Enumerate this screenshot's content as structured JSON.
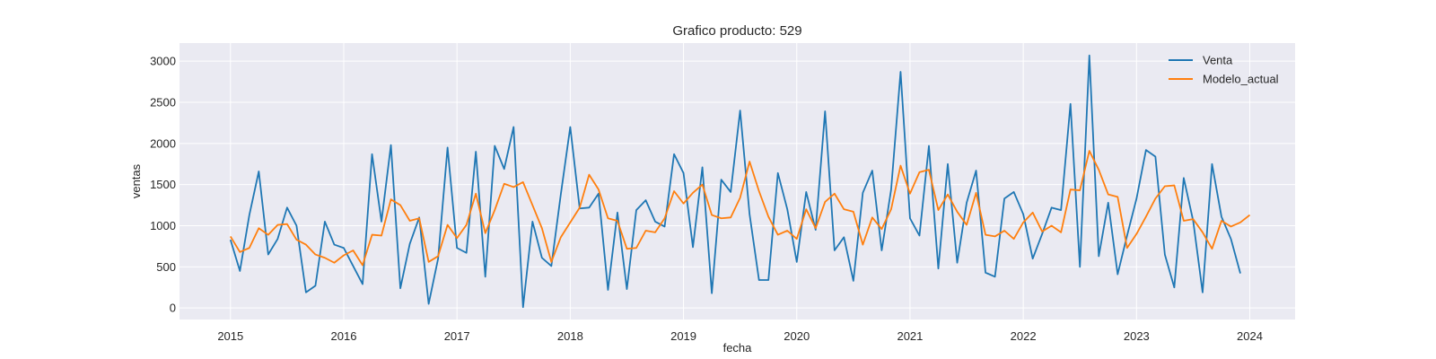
{
  "chart_data": {
    "type": "line",
    "title": "Grafico producto: 529",
    "xlabel": "fecha",
    "ylabel": "ventas",
    "xlim": [
      2014.55,
      2024.4
    ],
    "ylim": [
      -140,
      3220
    ],
    "x_ticks": [
      2015,
      2016,
      2017,
      2018,
      2019,
      2020,
      2021,
      2022,
      2023,
      2024
    ],
    "y_ticks": [
      0,
      500,
      1000,
      1500,
      2000,
      2500,
      3000
    ],
    "grid": true,
    "legend_position": "top-right",
    "background_color": "#eaeaf2",
    "x_start": 2015.0,
    "x_step": 0.0833333,
    "series": [
      {
        "name": "Venta",
        "color": "#1f77b4",
        "values": [
          830,
          450,
          1130,
          1660,
          650,
          840,
          1220,
          1000,
          190,
          270,
          1050,
          770,
          730,
          510,
          290,
          1870,
          1050,
          1980,
          240,
          780,
          1100,
          50,
          600,
          1950,
          730,
          670,
          1900,
          380,
          1970,
          1690,
          2200,
          10,
          1050,
          610,
          510,
          1380,
          2200,
          1210,
          1220,
          1390,
          220,
          1160,
          230,
          1190,
          1310,
          1050,
          990,
          1870,
          1640,
          740,
          1710,
          180,
          1560,
          1410,
          2400,
          1140,
          340,
          340,
          1640,
          1200,
          560,
          1410,
          950,
          2390,
          700,
          860,
          330,
          1400,
          1670,
          700,
          1440,
          2870,
          1090,
          880,
          1970,
          480,
          1750,
          550,
          1280,
          1670,
          430,
          380,
          1330,
          1410,
          1140,
          600,
          900,
          1220,
          1190,
          2480,
          500,
          3070,
          630,
          1280,
          410,
          880,
          1330,
          1920,
          1840,
          650,
          250,
          1580,
          1060,
          190,
          1750,
          1110,
          840,
          420
        ]
      },
      {
        "name": "Modelo_actual",
        "color": "#ff7f0e",
        "values": [
          870,
          680,
          730,
          970,
          890,
          1010,
          1020,
          830,
          770,
          650,
          610,
          550,
          640,
          700,
          520,
          890,
          880,
          1320,
          1250,
          1060,
          1090,
          560,
          630,
          1010,
          850,
          1010,
          1390,
          910,
          1190,
          1510,
          1470,
          1530,
          1250,
          970,
          560,
          860,
          1040,
          1220,
          1620,
          1440,
          1090,
          1060,
          720,
          730,
          940,
          920,
          1090,
          1420,
          1270,
          1400,
          1500,
          1130,
          1090,
          1100,
          1340,
          1780,
          1420,
          1110,
          890,
          940,
          840,
          1200,
          970,
          1290,
          1390,
          1200,
          1170,
          770,
          1100,
          960,
          1200,
          1730,
          1390,
          1650,
          1680,
          1190,
          1380,
          1170,
          1010,
          1400,
          890,
          870,
          940,
          840,
          1040,
          1160,
          930,
          1000,
          920,
          1440,
          1430,
          1910,
          1680,
          1380,
          1350,
          730,
          900,
          1110,
          1330,
          1480,
          1490,
          1060,
          1080,
          920,
          720,
          1060,
          990,
          1040,
          1130
        ]
      }
    ]
  }
}
